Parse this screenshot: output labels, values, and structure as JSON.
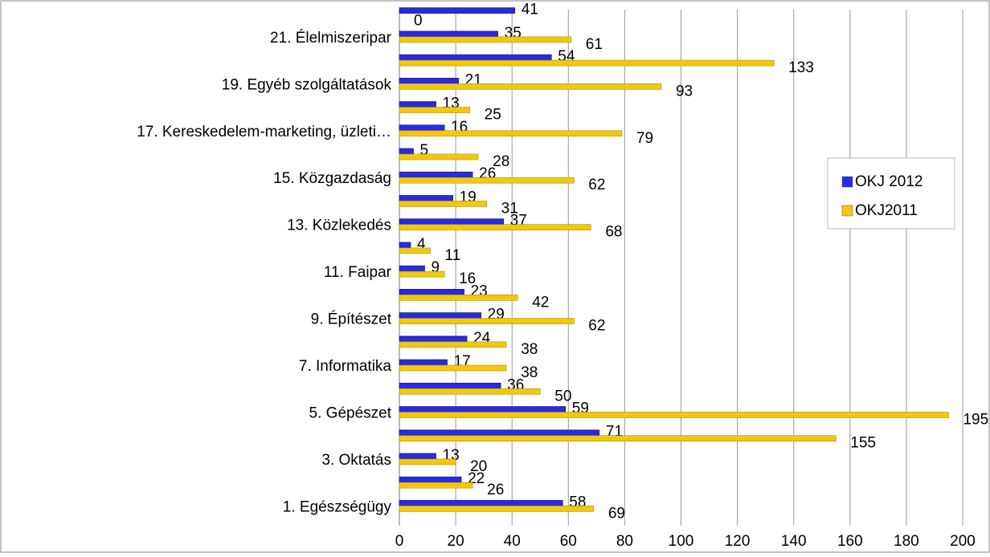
{
  "chart_data": {
    "type": "bar",
    "orientation": "horizontal",
    "categories": [
      "1. Egészségügy",
      null,
      "3. Oktatás",
      null,
      "5. Gépészet",
      null,
      "7. Informatika",
      null,
      "9. Építészet",
      null,
      "11. Faipar",
      null,
      "13. Közlekedés",
      null,
      "15. Közgazdaság",
      null,
      "17. Kereskedelem-marketing, üzleti…",
      null,
      "19. Egyéb szolgáltatások",
      null,
      "21. Élelmiszeripar",
      null
    ],
    "series": [
      {
        "name": "OKJ 2012",
        "color": "#2a2ae0",
        "values": [
          58,
          22,
          13,
          71,
          59,
          36,
          17,
          24,
          29,
          23,
          9,
          4,
          37,
          19,
          26,
          5,
          16,
          13,
          21,
          54,
          35,
          41
        ]
      },
      {
        "name": "OKJ2011",
        "color": "#f2c80f",
        "values": [
          69,
          26,
          20,
          155,
          195,
          50,
          38,
          38,
          62,
          42,
          16,
          11,
          68,
          31,
          62,
          28,
          79,
          25,
          93,
          133,
          61,
          0
        ]
      }
    ],
    "xlim": [
      0,
      200
    ],
    "xticks": [
      0,
      20,
      40,
      60,
      80,
      100,
      120,
      140,
      160,
      180,
      200
    ],
    "grid": true,
    "legend": "right"
  }
}
